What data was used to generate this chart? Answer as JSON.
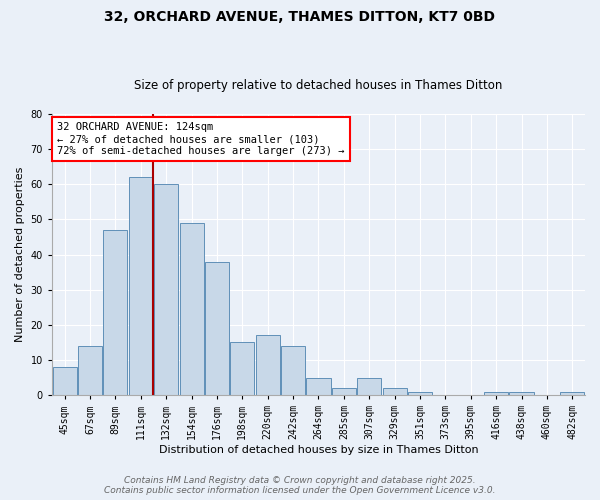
{
  "title_line1": "32, ORCHARD AVENUE, THAMES DITTON, KT7 0BD",
  "title_line2": "Size of property relative to detached houses in Thames Ditton",
  "xlabel": "Distribution of detached houses by size in Thames Ditton",
  "ylabel": "Number of detached properties",
  "bar_labels": [
    "45sqm",
    "67sqm",
    "89sqm",
    "111sqm",
    "132sqm",
    "154sqm",
    "176sqm",
    "198sqm",
    "220sqm",
    "242sqm",
    "264sqm",
    "285sqm",
    "307sqm",
    "329sqm",
    "351sqm",
    "373sqm",
    "395sqm",
    "416sqm",
    "438sqm",
    "460sqm",
    "482sqm"
  ],
  "bar_values": [
    8,
    14,
    47,
    62,
    60,
    49,
    38,
    15,
    17,
    14,
    5,
    2,
    5,
    2,
    1,
    0,
    0,
    1,
    1,
    0,
    1
  ],
  "bar_color": "#c8d8e8",
  "bar_edge_color": "#6090b8",
  "vline_color": "#aa0000",
  "annotation_text": "32 ORCHARD AVENUE: 124sqm\n← 27% of detached houses are smaller (103)\n72% of semi-detached houses are larger (273) →",
  "annotation_box_color": "white",
  "annotation_box_edge": "red",
  "ylim": [
    0,
    80
  ],
  "yticks": [
    0,
    10,
    20,
    30,
    40,
    50,
    60,
    70,
    80
  ],
  "background_color": "#eaf0f8",
  "plot_bg_color": "#eaf0f8",
  "grid_color": "white",
  "footer_line1": "Contains HM Land Registry data © Crown copyright and database right 2025.",
  "footer_line2": "Contains public sector information licensed under the Open Government Licence v3.0.",
  "title_fontsize": 10,
  "subtitle_fontsize": 8.5,
  "axis_label_fontsize": 8,
  "tick_fontsize": 7,
  "annotation_fontsize": 7.5,
  "footer_fontsize": 6.5
}
